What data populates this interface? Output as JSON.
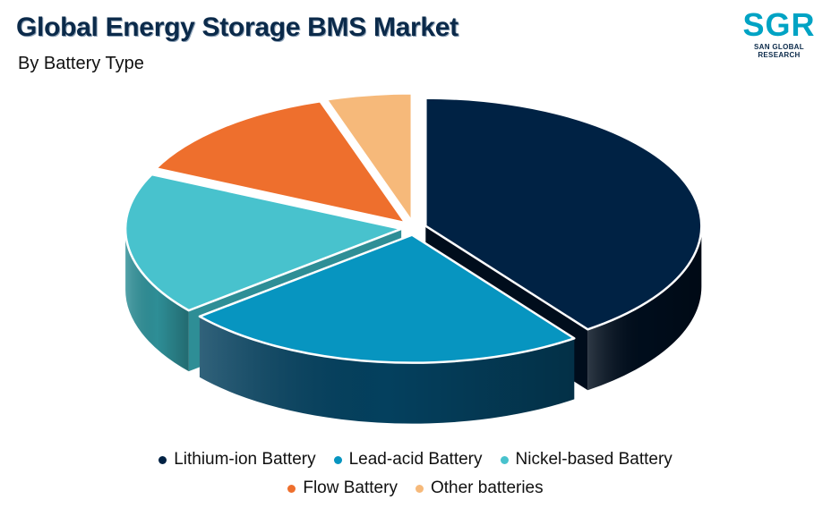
{
  "header": {
    "title": "Global Energy Storage BMS Market",
    "subtitle": "By Battery Type"
  },
  "logo": {
    "text": "SGR",
    "subtext": "SAN GLOBAL RESEARCH"
  },
  "chart_data": {
    "type": "pie",
    "style": "3d-exploded",
    "title": "Global Energy Storage BMS Market",
    "subtitle": "By Battery Type",
    "legend_position": "bottom",
    "categories": [
      "Lithium-ion Battery",
      "Lead-acid Battery",
      "Nickel-based Battery",
      "Flow Battery",
      "Other batteries"
    ],
    "values": [
      40,
      24,
      18,
      13,
      5
    ],
    "colors": [
      "#002244",
      "#0795c0",
      "#48c2cd",
      "#ee6f2d",
      "#f6b97a"
    ],
    "side_colors": [
      "#000d1c",
      "#04405e",
      "#2e8e96",
      "#a9491a",
      "#c98850"
    ]
  }
}
